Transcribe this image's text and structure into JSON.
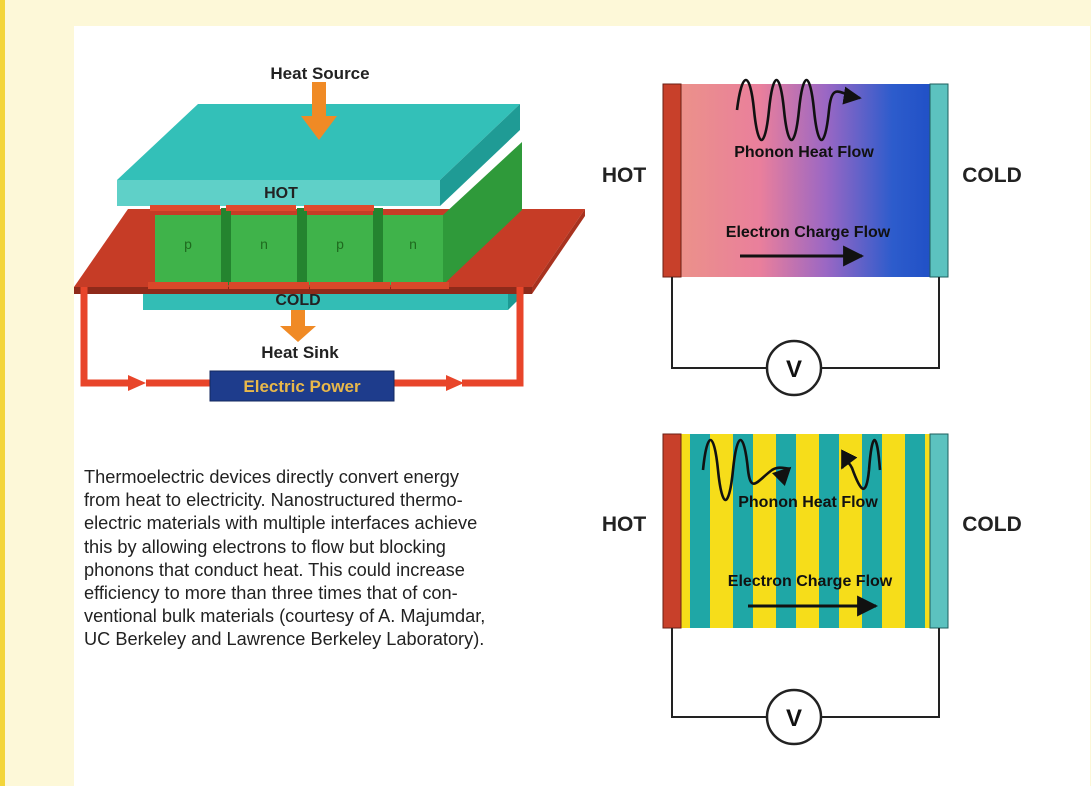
{
  "module_diagram": {
    "heat_source": "Heat Source",
    "hot": "HOT",
    "legs": [
      "p",
      "n",
      "p",
      "n"
    ],
    "cold": "COLD",
    "heat_sink": "Heat Sink",
    "electric_power": "Electric Power"
  },
  "bulk_diagram": {
    "hot": "HOT",
    "cold": "COLD",
    "phonon": "Phonon Heat Flow",
    "electron": "Electron Charge Flow",
    "voltmeter": "V"
  },
  "nano_diagram": {
    "hot": "HOT",
    "cold": "COLD",
    "phonon": "Phonon Heat Flow",
    "electron": "Electron Charge Flow",
    "voltmeter": "V"
  },
  "caption": {
    "lines": [
      "Thermoelectric devices directly convert energy",
      "from heat to electricity. Nanostructured thermo-",
      "electric materials with multiple interfaces achieve",
      "this by allowing electrons to flow but blocking",
      "phonons that conduct heat. This could increase",
      "efficiency to more than three times that of con-",
      "ventional bulk materials (courtesy of A. Majumdar,",
      "UC Berkeley and Lawrence Berkeley Laboratory)."
    ]
  },
  "colors": {
    "page_background": "#fdf8d8",
    "hot": "#c8402a",
    "cold_bar": "#5cc2bf",
    "arrow_orange": "#f08a25",
    "stripe_yellow": "#f6dd1a",
    "stripe_teal": "#1fa7a6",
    "gradient_blue": "#2156c8",
    "gradient_pink": "#e98d8a",
    "leg_green": "#3fb34a",
    "plate_teal": "#33c0b8",
    "power_box": "#1e3c8c"
  }
}
